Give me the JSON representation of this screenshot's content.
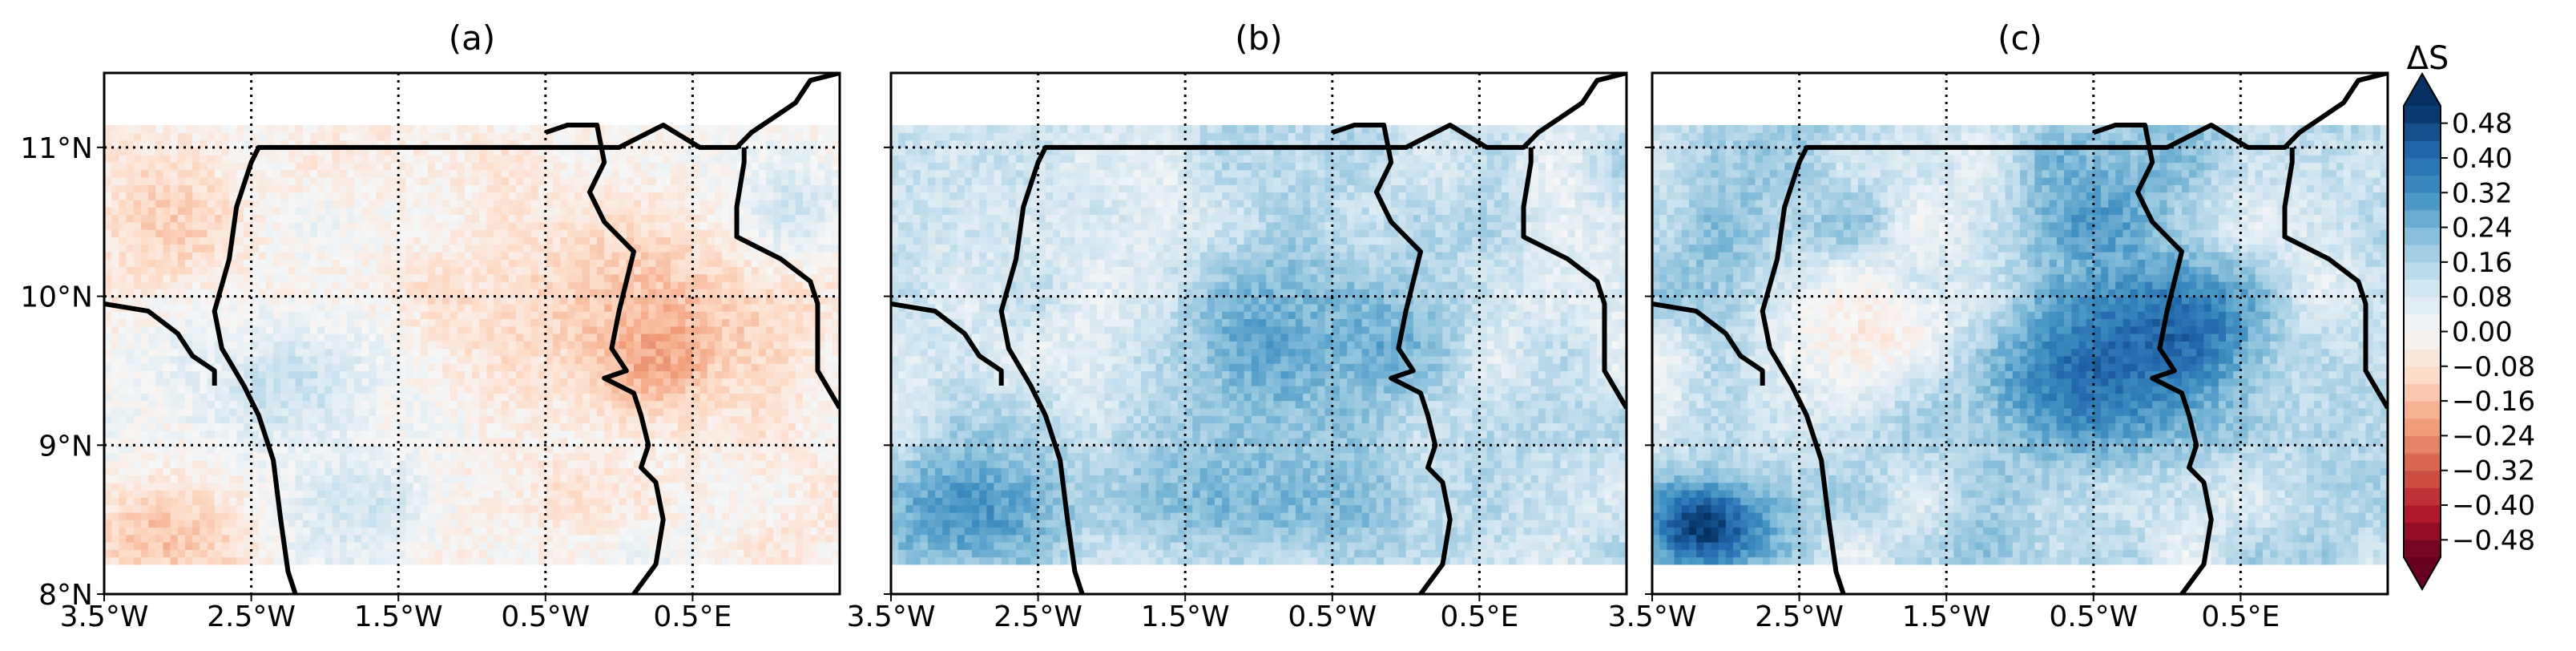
{
  "chart_data": [
    {
      "type": "heatmap",
      "title": "(a)",
      "xlabel": "",
      "ylabel": "",
      "xlim": [
        -3.5,
        1.5
      ],
      "ylim": [
        8.0,
        11.5
      ],
      "grid": true,
      "x_ticks": [
        -3.5,
        -2.5,
        -1.5,
        -0.5,
        0.5
      ],
      "x_tick_labels": [
        "3.5°W",
        "2.5°W",
        "1.5°W",
        "0.5°W",
        "0.5°E"
      ],
      "y_ticks": [
        8,
        9,
        10,
        11
      ],
      "y_tick_labels": [
        "8°N",
        "9°N",
        "10°N",
        "11°N"
      ],
      "data_extent": {
        "lon": [
          -3.5,
          1.5
        ],
        "lat": [
          8.2,
          11.15
        ]
      },
      "field": {
        "description_of_values": "gridded ΔS, approx range",
        "mean_range": [
          -0.2,
          0.12
        ],
        "regions": [
          {
            "lon": [
              -3.5,
              -2.6
            ],
            "lat": [
              10.1,
              10.9
            ],
            "value": -0.12
          },
          {
            "lon": [
              -2.9,
              -1.6
            ],
            "lat": [
              9.0,
              9.8
            ],
            "value": 0.12
          },
          {
            "lon": [
              -1.0,
              1.5
            ],
            "lat": [
              9.2,
              10.6
            ],
            "value": -0.14
          },
          {
            "lon": [
              0.0,
              0.5
            ],
            "lat": [
              9.3,
              9.9
            ],
            "value": -0.2
          },
          {
            "lon": [
              -3.5,
              -2.6
            ],
            "lat": [
              8.2,
              8.6
            ],
            "value": -0.16
          },
          {
            "lon": [
              0.9,
              1.5
            ],
            "lat": [
              10.3,
              10.9
            ],
            "value": 0.1
          },
          {
            "lon": [
              -2.4,
              -1.2
            ],
            "lat": [
              8.3,
              8.9
            ],
            "value": 0.1
          }
        ]
      }
    },
    {
      "type": "heatmap",
      "title": "(b)",
      "xlabel": "",
      "ylabel": "",
      "xlim": [
        -3.5,
        1.5
      ],
      "ylim": [
        8.0,
        11.5
      ],
      "grid": true,
      "x_ticks": [
        -3.5,
        -2.5,
        -1.5,
        -0.5,
        0.5
      ],
      "x_tick_labels": [
        "3.5°W",
        "2.5°W",
        "1.5°W",
        "0.5°W",
        "0.5°E"
      ],
      "y_ticks": [
        8,
        9,
        10,
        11
      ],
      "y_tick_labels": [],
      "data_extent": {
        "lon": [
          -3.5,
          1.5
        ],
        "lat": [
          8.2,
          11.15
        ]
      },
      "field": {
        "mean_range": [
          0.0,
          0.36
        ],
        "regions": [
          {
            "lon": [
              -3.5,
              -2.4
            ],
            "lat": [
              8.2,
              8.9
            ],
            "value": 0.32
          },
          {
            "lon": [
              -1.5,
              -0.4
            ],
            "lat": [
              9.1,
              10.3
            ],
            "value": 0.28
          },
          {
            "lon": [
              -0.6,
              0.2
            ],
            "lat": [
              9.3,
              10.0
            ],
            "value": 0.26
          },
          {
            "lon": [
              -2.4,
              0.4
            ],
            "lat": [
              8.3,
              9.0
            ],
            "value": 0.24
          },
          {
            "lon": [
              -3.3,
              -2.6
            ],
            "lat": [
              10.2,
              10.9
            ],
            "value": 0.1
          }
        ]
      }
    },
    {
      "type": "heatmap",
      "title": "(c)",
      "xlabel": "",
      "ylabel": "",
      "xlim": [
        -3.5,
        1.5
      ],
      "ylim": [
        8.0,
        11.5
      ],
      "grid": true,
      "x_ticks": [
        -3.5,
        -2.5,
        -1.5,
        -0.5,
        0.5
      ],
      "x_tick_labels": [
        "3.5°W",
        "2.5°W",
        "1.5°W",
        "0.5°W",
        "0.5°E"
      ],
      "y_ticks": [
        8,
        9,
        10,
        11
      ],
      "y_tick_labels": [],
      "data_extent": {
        "lon": [
          -3.5,
          1.5
        ],
        "lat": [
          8.2,
          11.15
        ]
      },
      "field": {
        "mean_range": [
          -0.08,
          0.52
        ],
        "regions": [
          {
            "lon": [
              -3.5,
              -2.8
            ],
            "lat": [
              8.2,
              8.7
            ],
            "value": 0.5
          },
          {
            "lon": [
              -1.2,
              0.1
            ],
            "lat": [
              9.0,
              10.0
            ],
            "value": 0.4
          },
          {
            "lon": [
              -0.4,
              0.5
            ],
            "lat": [
              9.4,
              10.1
            ],
            "value": 0.42
          },
          {
            "lon": [
              -1.0,
              0.0
            ],
            "lat": [
              10.2,
              10.8
            ],
            "value": 0.3
          },
          {
            "lon": [
              -2.6,
              -1.4
            ],
            "lat": [
              9.4,
              10.1
            ],
            "value": -0.04
          },
          {
            "lon": [
              0.8,
              1.5
            ],
            "lat": [
              8.6,
              9.5
            ],
            "value": 0.16
          }
        ]
      }
    }
  ],
  "colorbar": {
    "label": "ΔS",
    "vmin": -0.52,
    "vmax": 0.52,
    "ticks": [
      -0.48,
      -0.4,
      -0.32,
      -0.24,
      -0.16,
      -0.08,
      0.0,
      0.08,
      0.16,
      0.24,
      0.32,
      0.4,
      0.48
    ],
    "tick_labels": [
      "−0.48",
      "−0.40",
      "−0.32",
      "−0.24",
      "−0.16",
      "−0.08",
      "0.00",
      "0.08",
      "0.16",
      "0.24",
      "0.32",
      "0.40",
      "0.48"
    ],
    "extend": "both",
    "colormap": [
      "#67001f",
      "#b2182b",
      "#d6604d",
      "#f4a582",
      "#fddbc7",
      "#f7f7f7",
      "#d1e5f0",
      "#92c5de",
      "#4393c3",
      "#2166ac",
      "#053061"
    ]
  },
  "borders": {
    "color": "#000000",
    "lines": [
      [
        [
          -2.2,
          8.0
        ],
        [
          -2.25,
          8.15
        ],
        [
          -2.3,
          8.5
        ],
        [
          -2.35,
          8.9
        ],
        [
          -2.45,
          9.2
        ],
        [
          -2.55,
          9.4
        ],
        [
          -2.7,
          9.65
        ],
        [
          -2.75,
          9.9
        ],
        [
          -2.65,
          10.25
        ],
        [
          -2.6,
          10.6
        ],
        [
          -2.5,
          10.9
        ],
        [
          -2.45,
          11.0
        ],
        [
          -1.2,
          11.0
        ],
        [
          0.0,
          11.0
        ],
        [
          0.1,
          11.05
        ],
        [
          0.3,
          11.15
        ],
        [
          0.55,
          11.0
        ],
        [
          0.8,
          11.0
        ],
        [
          0.9,
          11.1
        ],
        [
          1.05,
          11.2
        ],
        [
          1.2,
          11.3
        ],
        [
          1.3,
          11.45
        ],
        [
          1.5,
          11.5
        ]
      ],
      [
        [
          -3.5,
          9.95
        ],
        [
          -3.2,
          9.9
        ],
        [
          -3.0,
          9.75
        ],
        [
          -2.9,
          9.6
        ],
        [
          -2.75,
          9.5
        ],
        [
          -2.75,
          9.4
        ]
      ],
      [
        [
          -0.5,
          11.1
        ],
        [
          -0.35,
          11.15
        ],
        [
          -0.15,
          11.15
        ],
        [
          -0.1,
          10.9
        ],
        [
          -0.2,
          10.7
        ],
        [
          -0.1,
          10.5
        ],
        [
          0.0,
          10.4
        ],
        [
          0.1,
          10.3
        ],
        [
          0.0,
          9.9
        ],
        [
          -0.05,
          9.65
        ],
        [
          0.05,
          9.5
        ],
        [
          -0.1,
          9.45
        ],
        [
          0.1,
          9.35
        ],
        [
          0.15,
          9.2
        ],
        [
          0.2,
          9.0
        ],
        [
          0.15,
          8.85
        ],
        [
          0.25,
          8.75
        ],
        [
          0.3,
          8.5
        ],
        [
          0.25,
          8.2
        ],
        [
          0.1,
          8.0
        ]
      ],
      [
        [
          0.85,
          11.0
        ],
        [
          0.85,
          10.9
        ],
        [
          0.8,
          10.6
        ],
        [
          0.8,
          10.4
        ],
        [
          0.9,
          10.35
        ],
        [
          1.1,
          10.25
        ],
        [
          1.3,
          10.1
        ],
        [
          1.35,
          9.95
        ],
        [
          1.35,
          9.5
        ],
        [
          1.5,
          9.25
        ]
      ]
    ]
  }
}
